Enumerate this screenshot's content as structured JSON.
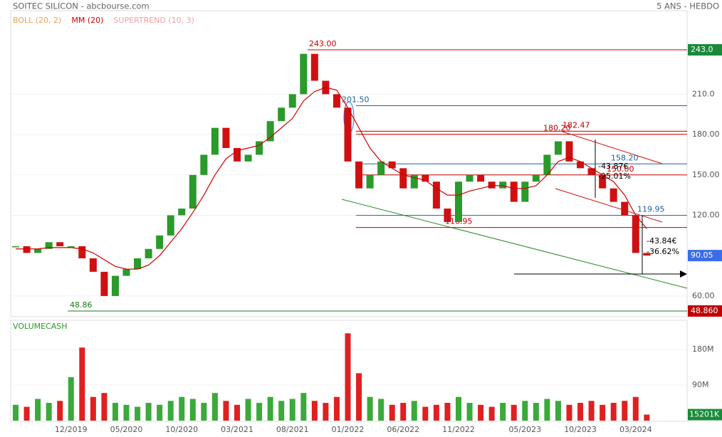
{
  "chart_data": [
    {
      "type": "candle",
      "title": "SOITEC SILICON - abcbourse.com",
      "subtitle": "5 ANS - HEBDO",
      "legend_texts": [
        {
          "text": "BOLL (20, 2)",
          "color": "#f0a050"
        },
        {
          "text": "MM (20)",
          "color": "#d00000"
        },
        {
          "text": "SUPERTREND (10, 3)",
          "color": "#f4a0a0"
        }
      ],
      "categories": [
        null,
        null,
        null,
        null,
        null,
        "12/2019",
        null,
        null,
        null,
        null,
        "05/2020",
        null,
        null,
        null,
        null,
        "10/2020",
        null,
        null,
        null,
        null,
        "03/2021",
        null,
        null,
        null,
        null,
        "08/2021",
        null,
        null,
        null,
        null,
        "01/2022",
        null,
        null,
        null,
        null,
        "06/2022",
        null,
        null,
        null,
        null,
        "11/2022",
        null,
        null,
        null,
        null,
        null,
        "05/2023",
        null,
        null,
        null,
        null,
        "10/2023",
        null,
        null,
        null,
        null,
        "03/2024",
        null
      ],
      "values": [
        97,
        92,
        95,
        100,
        97,
        97,
        88,
        78,
        60,
        75,
        80,
        88,
        95,
        105,
        120,
        125,
        150,
        165,
        185,
        170,
        160,
        165,
        175,
        190,
        200,
        210,
        240,
        220,
        210,
        200,
        160,
        140,
        150,
        160,
        155,
        140,
        150,
        145,
        125,
        115,
        145,
        150,
        145,
        140,
        145,
        130,
        145,
        150,
        165,
        175,
        160,
        155,
        150,
        140,
        130,
        120,
        92,
        90.05
      ],
      "up_color": "#2a9a2a",
      "down_color": "#d01010",
      "series": [
        {
          "name": "MM (20)",
          "color": "#d00000",
          "values": [
            95,
            95,
            95,
            96,
            96,
            96,
            95,
            92,
            87,
            82,
            80,
            80,
            83,
            90,
            100,
            110,
            122,
            135,
            150,
            162,
            168,
            170,
            172,
            178,
            185,
            192,
            205,
            212,
            215,
            213,
            200,
            185,
            170,
            160,
            155,
            150,
            148,
            146,
            140,
            135,
            135,
            138,
            140,
            142,
            142,
            140,
            140,
            142,
            150,
            160,
            163,
            160,
            155,
            150,
            145,
            135,
            120,
            110
          ]
        }
      ],
      "levels": [
        {
          "value": 243,
          "label": "243.00",
          "color": "#c00000"
        },
        {
          "value": 201.5,
          "label": "201.50",
          "color": "#2060a0"
        },
        {
          "value": 182.47,
          "label": "182.47",
          "color": "#c00000"
        },
        {
          "value": 180.2,
          "label": "180.20",
          "color": "#c00000"
        },
        {
          "value": 158.2,
          "label": "158.20",
          "color": "#2060a0"
        },
        {
          "value": 150,
          "label": "150.00",
          "color": "#c00000"
        },
        {
          "value": 119.95,
          "label": "119.95",
          "color": "#2060a0"
        },
        {
          "value": 110.95,
          "label": "110.95",
          "color": "#c00000"
        },
        {
          "value": 48.86,
          "label": "48.86",
          "color": "#1a7a1a"
        }
      ],
      "annotations": [
        "-43.87€",
        "-25.01%",
        "-43.84€",
        "-36.62%"
      ],
      "price_tags": [
        {
          "value": 243,
          "label": "243.0",
          "color": "#1a8a3a"
        },
        {
          "value": 90.05,
          "label": "90.05",
          "color": "#3a6ee8"
        },
        {
          "value": 48.86,
          "label": "48.860",
          "color": "#c00000"
        }
      ],
      "ylim": [
        44.6,
        272.1
      ],
      "yticks": [
        {
          "value": 60,
          "label": "60.00"
        },
        {
          "value": 120,
          "label": "120.00"
        },
        {
          "value": 150,
          "label": "150.00"
        },
        {
          "value": 180,
          "label": "180.00"
        },
        {
          "value": 210,
          "label": "210.0"
        }
      ]
    },
    {
      "type": "bar",
      "title": "VOLUMECASH",
      "values": [
        40,
        35,
        55,
        45,
        50,
        110,
        185,
        60,
        70,
        45,
        40,
        35,
        45,
        40,
        50,
        60,
        55,
        45,
        70,
        50,
        40,
        55,
        45,
        60,
        50,
        55,
        70,
        50,
        45,
        60,
        221,
        120,
        60,
        55,
        40,
        45,
        50,
        35,
        40,
        45,
        60,
        45,
        40,
        35,
        45,
        40,
        50,
        45,
        55,
        50,
        40,
        45,
        50,
        40,
        45,
        50,
        60,
        15.201
      ],
      "ylim": [
        0,
        245
      ],
      "yticks": [
        {
          "value": 90,
          "label": "90M"
        },
        {
          "value": 180,
          "label": "180M"
        }
      ],
      "tag": {
        "value": 15.201,
        "label": "15201K",
        "color": "#1a8a3a"
      }
    }
  ]
}
